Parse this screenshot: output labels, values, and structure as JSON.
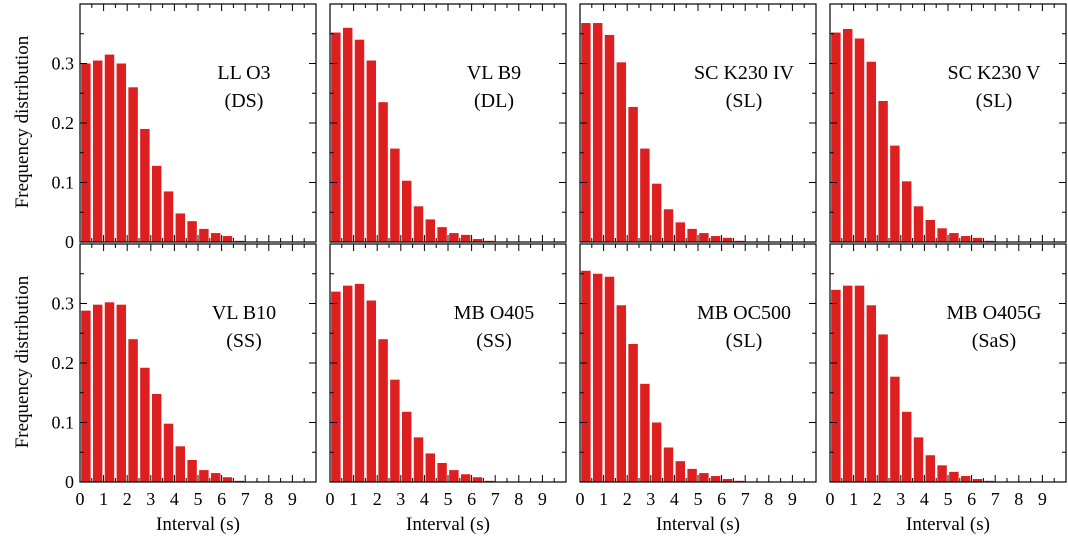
{
  "figure": {
    "ylabel": "Frequency distribution",
    "xlabel": "Interval (s)",
    "colors": {
      "bar": "#dd1f1f",
      "axis": "#000000"
    }
  },
  "chart_data": [
    {
      "type": "bar",
      "title": "LL O3",
      "subtitle": "(DS)",
      "x": [
        0.25,
        0.75,
        1.25,
        1.75,
        2.25,
        2.75,
        3.25,
        3.75,
        4.25,
        4.75,
        5.25,
        5.75,
        6.25,
        6.75
      ],
      "values": [
        0.3,
        0.305,
        0.315,
        0.3,
        0.26,
        0.19,
        0.128,
        0.085,
        0.048,
        0.035,
        0.022,
        0.015,
        0.01,
        0.002
      ],
      "xticks": [
        "0",
        "1",
        "2",
        "3",
        "4",
        "5",
        "6",
        "7",
        "8",
        "9"
      ],
      "yticks": [
        "0",
        "0.1",
        "0.2",
        "0.3"
      ],
      "xlim": [
        0,
        10
      ],
      "ylim": [
        0,
        0.4
      ],
      "grid": false
    },
    {
      "type": "bar",
      "title": "VL B9",
      "subtitle": "(DL)",
      "x": [
        0.25,
        0.75,
        1.25,
        1.75,
        2.25,
        2.75,
        3.25,
        3.75,
        4.25,
        4.75,
        5.25,
        5.75,
        6.25,
        6.75
      ],
      "values": [
        0.352,
        0.36,
        0.34,
        0.305,
        0.235,
        0.157,
        0.103,
        0.06,
        0.038,
        0.025,
        0.015,
        0.012,
        0.005,
        0.002
      ],
      "xticks": [
        "0",
        "1",
        "2",
        "3",
        "4",
        "5",
        "6",
        "7",
        "8",
        "9"
      ],
      "yticks": [
        "0",
        "0.1",
        "0.2",
        "0.3"
      ],
      "xlim": [
        0,
        10
      ],
      "ylim": [
        0,
        0.4
      ],
      "grid": false
    },
    {
      "type": "bar",
      "title": "SC K230 IV",
      "subtitle": "(SL)",
      "x": [
        0.25,
        0.75,
        1.25,
        1.75,
        2.25,
        2.75,
        3.25,
        3.75,
        4.25,
        4.75,
        5.25,
        5.75,
        6.25,
        6.75
      ],
      "values": [
        0.368,
        0.368,
        0.348,
        0.302,
        0.227,
        0.157,
        0.098,
        0.055,
        0.033,
        0.022,
        0.015,
        0.01,
        0.007,
        0.002
      ],
      "xticks": [
        "0",
        "1",
        "2",
        "3",
        "4",
        "5",
        "6",
        "7",
        "8",
        "9"
      ],
      "yticks": [
        "0",
        "0.1",
        "0.2",
        "0.3"
      ],
      "xlim": [
        0,
        10
      ],
      "ylim": [
        0,
        0.4
      ],
      "grid": false
    },
    {
      "type": "bar",
      "title": "SC K230 V",
      "subtitle": "(SL)",
      "x": [
        0.25,
        0.75,
        1.25,
        1.75,
        2.25,
        2.75,
        3.25,
        3.75,
        4.25,
        4.75,
        5.25,
        5.75,
        6.25,
        6.75
      ],
      "values": [
        0.352,
        0.358,
        0.342,
        0.303,
        0.237,
        0.162,
        0.102,
        0.06,
        0.037,
        0.023,
        0.015,
        0.01,
        0.007,
        0.002
      ],
      "xticks": [
        "0",
        "1",
        "2",
        "3",
        "4",
        "5",
        "6",
        "7",
        "8",
        "9"
      ],
      "yticks": [
        "0",
        "0.1",
        "0.2",
        "0.3"
      ],
      "xlim": [
        0,
        10
      ],
      "ylim": [
        0,
        0.4
      ],
      "grid": false
    },
    {
      "type": "bar",
      "title": "VL B10",
      "subtitle": "(SS)",
      "x": [
        0.25,
        0.75,
        1.25,
        1.75,
        2.25,
        2.75,
        3.25,
        3.75,
        4.25,
        4.75,
        5.25,
        5.75,
        6.25,
        6.75
      ],
      "values": [
        0.288,
        0.298,
        0.302,
        0.298,
        0.24,
        0.192,
        0.148,
        0.098,
        0.06,
        0.037,
        0.02,
        0.015,
        0.008,
        0.002
      ],
      "xticks": [
        "0",
        "1",
        "2",
        "3",
        "4",
        "5",
        "6",
        "7",
        "8",
        "9"
      ],
      "yticks": [
        "0",
        "0.1",
        "0.2",
        "0.3"
      ],
      "xlim": [
        0,
        10
      ],
      "ylim": [
        0,
        0.4
      ],
      "grid": false
    },
    {
      "type": "bar",
      "title": "MB O405",
      "subtitle": "(SS)",
      "x": [
        0.25,
        0.75,
        1.25,
        1.75,
        2.25,
        2.75,
        3.25,
        3.75,
        4.25,
        4.75,
        5.25,
        5.75,
        6.25,
        6.75
      ],
      "values": [
        0.32,
        0.33,
        0.333,
        0.305,
        0.24,
        0.172,
        0.118,
        0.075,
        0.048,
        0.032,
        0.02,
        0.013,
        0.008,
        0.002
      ],
      "xticks": [
        "0",
        "1",
        "2",
        "3",
        "4",
        "5",
        "6",
        "7",
        "8",
        "9"
      ],
      "yticks": [
        "0",
        "0.1",
        "0.2",
        "0.3"
      ],
      "xlim": [
        0,
        10
      ],
      "ylim": [
        0,
        0.4
      ],
      "grid": false
    },
    {
      "type": "bar",
      "title": "MB OC500",
      "subtitle": "(SL)",
      "x": [
        0.25,
        0.75,
        1.25,
        1.75,
        2.25,
        2.75,
        3.25,
        3.75,
        4.25,
        4.75,
        5.25,
        5.75,
        6.25,
        6.75
      ],
      "values": [
        0.355,
        0.35,
        0.345,
        0.297,
        0.232,
        0.165,
        0.1,
        0.058,
        0.035,
        0.022,
        0.015,
        0.01,
        0.005,
        0.002
      ],
      "xticks": [
        "0",
        "1",
        "2",
        "3",
        "4",
        "5",
        "6",
        "7",
        "8",
        "9"
      ],
      "yticks": [
        "0",
        "0.1",
        "0.2",
        "0.3"
      ],
      "xlim": [
        0,
        10
      ],
      "ylim": [
        0,
        0.4
      ],
      "grid": false
    },
    {
      "type": "bar",
      "title": "MB O405G",
      "subtitle": "(SaS)",
      "x": [
        0.25,
        0.75,
        1.25,
        1.75,
        2.25,
        2.75,
        3.25,
        3.75,
        4.25,
        4.75,
        5.25,
        5.75,
        6.25,
        6.75
      ],
      "values": [
        0.323,
        0.33,
        0.33,
        0.297,
        0.248,
        0.177,
        0.118,
        0.075,
        0.045,
        0.028,
        0.017,
        0.01,
        0.005,
        0.002
      ],
      "xticks": [
        "0",
        "1",
        "2",
        "3",
        "4",
        "5",
        "6",
        "7",
        "8",
        "9"
      ],
      "yticks": [
        "0",
        "0.1",
        "0.2",
        "0.3"
      ],
      "xlim": [
        0,
        10
      ],
      "ylim": [
        0,
        0.4
      ],
      "grid": false
    }
  ]
}
